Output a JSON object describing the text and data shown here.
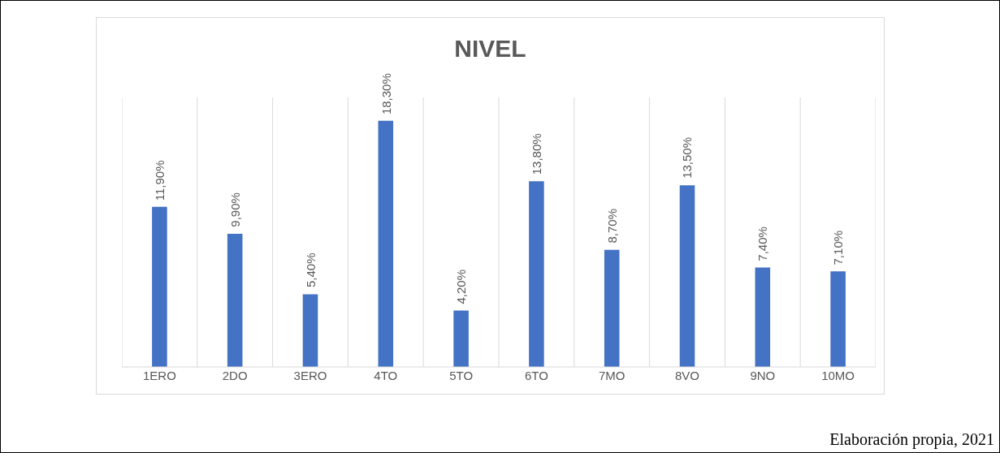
{
  "chart_data": {
    "type": "bar",
    "title": "NIVEL",
    "categories": [
      "1ERO",
      "2DO",
      "3ERO",
      "4TO",
      "5TO",
      "6TO",
      "7MO",
      "8VO",
      "9NO",
      "10MO"
    ],
    "values": [
      11.9,
      9.9,
      5.4,
      18.3,
      4.2,
      13.8,
      8.7,
      13.5,
      7.4,
      7.1
    ],
    "value_labels": [
      "11,90%",
      "9,90%",
      "5,40%",
      "18,30%",
      "4,20%",
      "13,80%",
      "8,70%",
      "13,50%",
      "7,40%",
      "7,10%"
    ],
    "color": "#4472c4",
    "grid": "x",
    "tick_labels": "x",
    "annotations": [
      "Elaboración propia, 2021"
    ]
  }
}
